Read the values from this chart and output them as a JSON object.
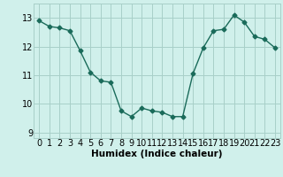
{
  "x": [
    0,
    1,
    2,
    3,
    4,
    5,
    6,
    7,
    8,
    9,
    10,
    11,
    12,
    13,
    14,
    15,
    16,
    17,
    18,
    19,
    20,
    21,
    22,
    23
  ],
  "y": [
    12.9,
    12.7,
    12.65,
    12.55,
    11.85,
    11.1,
    10.8,
    10.75,
    9.75,
    9.55,
    9.85,
    9.75,
    9.7,
    9.55,
    9.55,
    11.05,
    11.95,
    12.55,
    12.6,
    13.1,
    12.85,
    12.35,
    12.25,
    11.95
  ],
  "line_color": "#1a6b5a",
  "marker": "D",
  "markersize": 2.5,
  "linewidth": 1.0,
  "bg_color": "#d0f0eb",
  "grid_color": "#a8cfc8",
  "xlabel": "Humidex (Indice chaleur)",
  "xlabel_fontsize": 7.5,
  "tick_fontsize": 7,
  "yticks": [
    9,
    10,
    11,
    12,
    13
  ],
  "xticks": [
    0,
    1,
    2,
    3,
    4,
    5,
    6,
    7,
    8,
    9,
    10,
    11,
    12,
    13,
    14,
    15,
    16,
    17,
    18,
    19,
    20,
    21,
    22,
    23
  ],
  "ylim": [
    8.8,
    13.5
  ],
  "xlim": [
    -0.5,
    23.5
  ]
}
